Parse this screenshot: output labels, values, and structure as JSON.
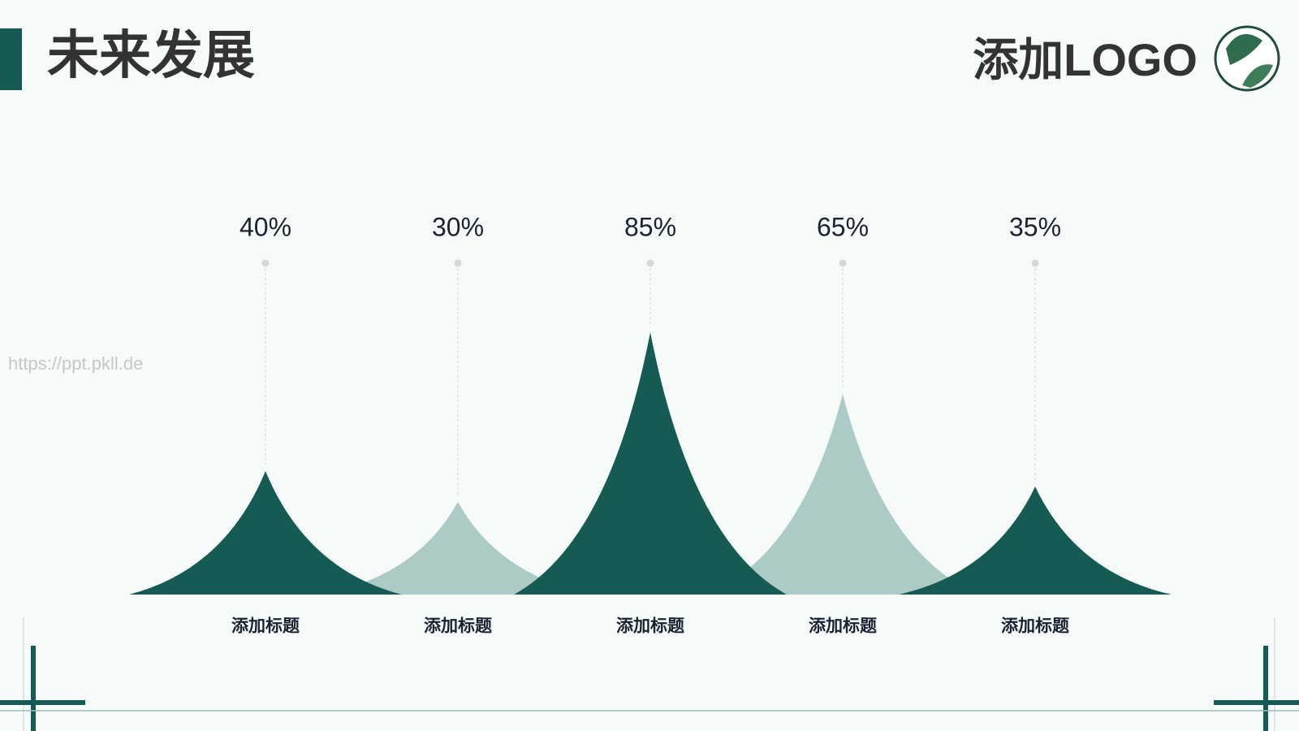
{
  "chart_data": {
    "type": "peak",
    "title": "未来发展",
    "categories": [
      "添加标题",
      "添加标题",
      "添加标题",
      "添加标题",
      "添加标题"
    ],
    "values": [
      40,
      30,
      85,
      65,
      35
    ],
    "value_labels": [
      "40%",
      "30%",
      "85%",
      "65%",
      "35%"
    ],
    "colors": [
      "#165a54",
      "#adcbc6",
      "#165a54",
      "#adcbc6",
      "#165a54"
    ],
    "ylim": [
      0,
      100
    ]
  },
  "logo": "添加LOGO",
  "watermark": "https://ppt.pkll.de"
}
